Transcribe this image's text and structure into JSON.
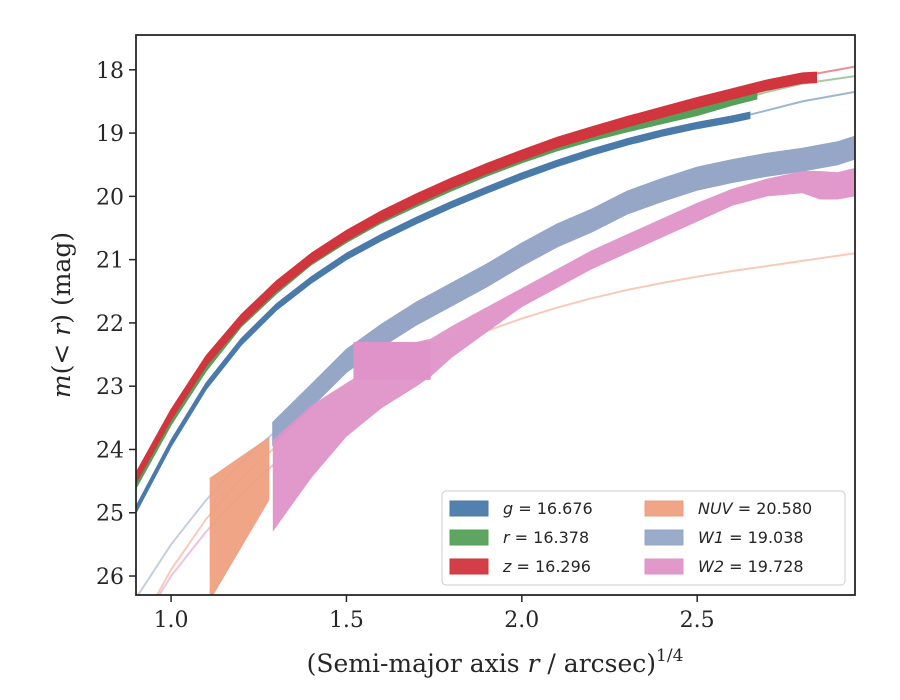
{
  "chart_data": {
    "type": "line",
    "xlabel": {
      "main": "(Semi-major axis ",
      "var": "r",
      "rest": " / arcsec)",
      "sup": "1/4"
    },
    "ylabel": {
      "pre": "m",
      "mid": "(< ",
      "var": "r",
      "post": ") (mag)"
    },
    "xlim": [
      0.9,
      2.95
    ],
    "ylim": [
      26.3,
      17.45
    ],
    "y_inverted": true,
    "x_ticks": [
      1.0,
      1.5,
      2.0,
      2.5
    ],
    "x_tick_labels": [
      "1.0",
      "1.5",
      "2.0",
      "2.5"
    ],
    "y_ticks": [
      18,
      19,
      20,
      21,
      22,
      23,
      24,
      25,
      26
    ],
    "y_tick_labels": [
      "18",
      "19",
      "20",
      "21",
      "22",
      "23",
      "24",
      "25",
      "26"
    ],
    "grid": false,
    "legend": {
      "placement": "lower-right",
      "columns": 2,
      "entries": [
        {
          "band": "g",
          "text": " = 16.676",
          "color": "#4a7aa9"
        },
        {
          "band": "r",
          "text": " = 16.378",
          "color": "#55a05a"
        },
        {
          "band": "z",
          "text": " = 16.296",
          "color": "#d1353d"
        },
        {
          "band": "NUV",
          "text": " = 20.580",
          "color": "#eea07f"
        },
        {
          "band": "W1",
          "text": " = 19.038",
          "color": "#96a6c7"
        },
        {
          "band": "W2",
          "text": " = 19.728",
          "color": "#df93c8"
        }
      ]
    },
    "series": [
      {
        "name": "g",
        "color": "#4a7aa9",
        "model_color": "#4a7aa9",
        "model": {
          "x": [
            0.9,
            1.0,
            1.1,
            1.2,
            1.3,
            1.4,
            1.5,
            1.6,
            1.7,
            1.8,
            1.9,
            2.0,
            2.1,
            2.2,
            2.3,
            2.4,
            2.5,
            2.6,
            2.7,
            2.8,
            2.95
          ],
          "y": [
            24.95,
            23.9,
            23.0,
            22.3,
            21.75,
            21.32,
            20.95,
            20.65,
            20.38,
            20.13,
            19.9,
            19.68,
            19.48,
            19.3,
            19.14,
            19.0,
            18.88,
            18.78,
            18.64,
            18.5,
            18.35
          ]
        },
        "data": {
          "x": [
            0.9,
            1.0,
            1.1,
            1.2,
            1.3,
            1.4,
            1.5,
            1.6,
            1.7,
            1.8,
            1.9,
            2.0,
            2.1,
            2.2,
            2.3,
            2.4,
            2.5,
            2.6,
            2.65
          ],
          "y": [
            24.95,
            23.9,
            23.0,
            22.3,
            21.75,
            21.32,
            20.95,
            20.65,
            20.38,
            20.13,
            19.9,
            19.68,
            19.48,
            19.3,
            19.14,
            19.0,
            18.88,
            18.78,
            18.72
          ],
          "width": 0.05
        }
      },
      {
        "name": "r",
        "color": "#55a05a",
        "model_color": "#55a05a",
        "model": {
          "x": [
            0.9,
            1.0,
            1.1,
            1.2,
            1.3,
            1.4,
            1.5,
            1.6,
            1.7,
            1.8,
            1.9,
            2.0,
            2.1,
            2.2,
            2.3,
            2.4,
            2.5,
            2.6,
            2.7,
            2.8,
            2.95
          ],
          "y": [
            24.55,
            23.55,
            22.7,
            22.0,
            21.48,
            21.02,
            20.67,
            20.36,
            20.1,
            19.85,
            19.62,
            19.41,
            19.22,
            19.06,
            18.92,
            18.79,
            18.66,
            18.5,
            18.35,
            18.22,
            18.1
          ]
        },
        "data": {
          "x": [
            0.9,
            1.0,
            1.1,
            1.2,
            1.3,
            1.4,
            1.5,
            1.6,
            1.7,
            1.8,
            1.9,
            2.0,
            2.1,
            2.2,
            2.3,
            2.4,
            2.5,
            2.6,
            2.67
          ],
          "y": [
            24.55,
            23.55,
            22.7,
            22.0,
            21.48,
            21.02,
            20.67,
            20.36,
            20.1,
            19.85,
            19.62,
            19.41,
            19.22,
            19.06,
            18.92,
            18.79,
            18.66,
            18.5,
            18.4
          ],
          "width": 0.06
        }
      },
      {
        "name": "z",
        "color": "#d1353d",
        "model_color": "#d1353d",
        "model": {
          "x": [
            0.9,
            1.0,
            1.1,
            1.2,
            1.3,
            1.4,
            1.5,
            1.6,
            1.7,
            1.8,
            1.9,
            2.0,
            2.1,
            2.2,
            2.3,
            2.4,
            2.5,
            2.6,
            2.7,
            2.8,
            2.95
          ],
          "y": [
            24.45,
            23.45,
            22.6,
            21.95,
            21.42,
            20.98,
            20.62,
            20.31,
            20.04,
            19.79,
            19.56,
            19.35,
            19.15,
            18.98,
            18.82,
            18.67,
            18.52,
            18.38,
            18.23,
            18.1,
            17.95
          ]
        },
        "data": {
          "x": [
            0.9,
            1.0,
            1.1,
            1.2,
            1.3,
            1.4,
            1.5,
            1.6,
            1.7,
            1.8,
            1.9,
            2.0,
            2.1,
            2.2,
            2.3,
            2.4,
            2.5,
            2.6,
            2.7,
            2.8,
            2.84
          ],
          "y": [
            24.45,
            23.45,
            22.6,
            21.95,
            21.42,
            20.98,
            20.62,
            20.31,
            20.04,
            19.79,
            19.56,
            19.35,
            19.15,
            18.98,
            18.82,
            18.67,
            18.52,
            18.38,
            18.24,
            18.13,
            18.12
          ],
          "width": 0.08
        }
      },
      {
        "name": "NUV",
        "color": "#eea07f",
        "model_color": "#eea07f",
        "model": {
          "x": [
            0.95,
            1.0,
            1.1,
            1.2,
            1.3,
            1.4,
            1.5,
            1.6,
            1.7,
            1.8,
            1.9,
            2.0,
            2.1,
            2.2,
            2.3,
            2.4,
            2.5,
            2.6,
            2.7,
            2.8,
            2.95
          ],
          "y": [
            26.4,
            25.9,
            25.1,
            24.45,
            23.95,
            23.55,
            23.2,
            22.88,
            22.6,
            22.35,
            22.13,
            21.93,
            21.76,
            21.61,
            21.48,
            21.37,
            21.27,
            21.18,
            21.1,
            21.02,
            20.9
          ]
        },
        "data": {
          "x": [
            1.11,
            1.28
          ],
          "y_upper": [
            24.45,
            23.8
          ],
          "y_lower": [
            26.4,
            24.8
          ]
        }
      },
      {
        "name": "W1",
        "color": "#96a6c7",
        "model_color": "#96a6c7",
        "model": {
          "x": [
            0.9,
            1.0,
            1.1,
            1.2,
            1.3
          ],
          "y": [
            26.35,
            25.5,
            24.8,
            24.2,
            23.7
          ]
        },
        "data": {
          "x": [
            1.29,
            1.4,
            1.5,
            1.6,
            1.7,
            1.8,
            1.9,
            2.0,
            2.1,
            2.2,
            2.3,
            2.4,
            2.5,
            2.6,
            2.7,
            2.8,
            2.9,
            2.95
          ],
          "y": [
            23.75,
            23.15,
            22.6,
            22.2,
            21.85,
            21.55,
            21.25,
            20.92,
            20.62,
            20.38,
            20.1,
            19.9,
            19.72,
            19.6,
            19.5,
            19.42,
            19.32,
            19.23
          ],
          "width": 0.18
        }
      },
      {
        "name": "W2",
        "color": "#df93c8",
        "model_color": "#df93c8",
        "model": {
          "x": [
            0.95,
            1.0,
            1.1,
            1.2,
            1.3
          ],
          "y": [
            26.45,
            26.0,
            25.3,
            24.7,
            24.2
          ]
        },
        "data": {
          "x": [
            1.29,
            1.4,
            1.5,
            1.6,
            1.7,
            1.74,
            1.8,
            1.9,
            2.0,
            2.1,
            2.2,
            2.3,
            2.4,
            2.5,
            2.6,
            2.7,
            2.8,
            2.85,
            2.9,
            2.95
          ],
          "y_upper": [
            23.85,
            23.3,
            22.95,
            22.6,
            22.3,
            22.25,
            22.05,
            21.75,
            21.45,
            21.15,
            20.85,
            20.6,
            20.35,
            20.1,
            19.88,
            19.72,
            19.6,
            19.6,
            19.62,
            19.55
          ],
          "y_lower": [
            25.3,
            24.45,
            23.8,
            23.35,
            23.0,
            22.85,
            22.55,
            22.15,
            21.75,
            21.45,
            21.15,
            20.9,
            20.65,
            20.4,
            20.15,
            20.0,
            19.95,
            20.05,
            20.05,
            20.0
          ]
        },
        "extra_box": {
          "x": [
            1.52,
            1.74
          ],
          "y": [
            22.3,
            22.9
          ]
        }
      }
    ]
  }
}
